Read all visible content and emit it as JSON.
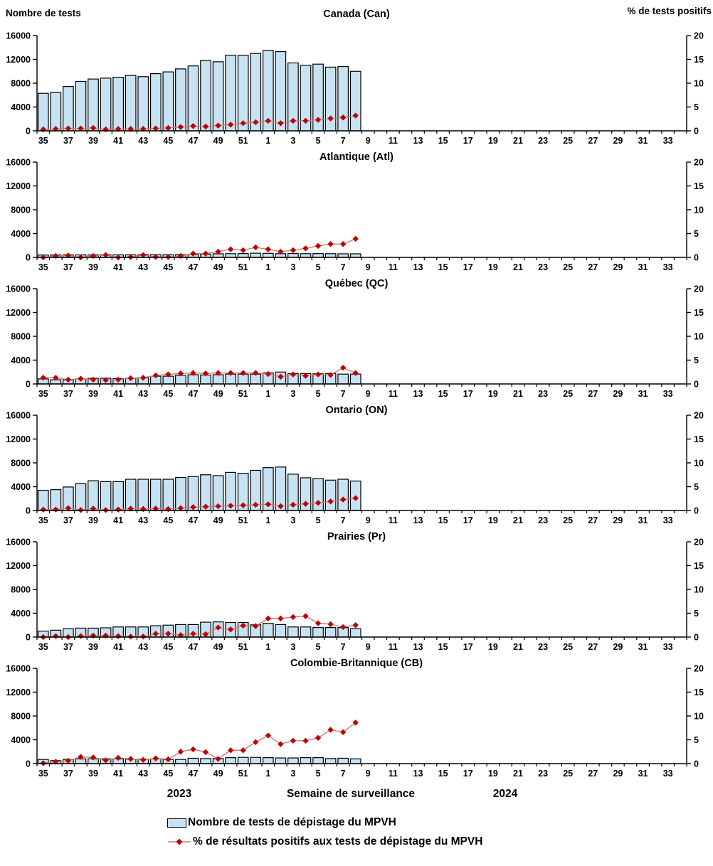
{
  "header": {
    "left_axis_title": "Nombre de tests",
    "right_axis_title": "% de tests positifs"
  },
  "footer": {
    "year_left": "2023",
    "x_axis_title": "Semaine de surveillance",
    "year_right": "2024"
  },
  "legend": {
    "bars_label": "Nombre de tests de dépistage du MPVH",
    "line_label": "% de résultats positifs aux tests de dépistage du MPVH"
  },
  "colors": {
    "bar_fill": "#C6E2F3",
    "bar_stroke": "#000000",
    "line": "#CC7A7A",
    "marker": "#BE0000",
    "axis": "#000000"
  },
  "chart_data": {
    "type": "bar+line",
    "x_axis_all_weeks": [
      35,
      36,
      37,
      38,
      39,
      40,
      41,
      42,
      43,
      44,
      45,
      46,
      47,
      48,
      49,
      50,
      51,
      52,
      1,
      2,
      3,
      4,
      5,
      6,
      7,
      8,
      9,
      10,
      11,
      12,
      13,
      14,
      15,
      16,
      17,
      18,
      19,
      20,
      21,
      22,
      23,
      24,
      25,
      26,
      27,
      28,
      29,
      30,
      31,
      32,
      33,
      34
    ],
    "x_tick_labels_shown": [
      35,
      37,
      39,
      41,
      43,
      45,
      47,
      49,
      51,
      1,
      3,
      5,
      7,
      9,
      11,
      13,
      15,
      17,
      19,
      21,
      23,
      25,
      27,
      29,
      31,
      33
    ],
    "weeks_with_data": [
      35,
      36,
      37,
      38,
      39,
      40,
      41,
      42,
      43,
      44,
      45,
      46,
      47,
      48,
      49,
      50,
      51,
      52,
      1,
      2,
      3,
      4,
      5,
      6,
      7,
      8
    ],
    "y_left_label": "Nombre de tests",
    "y_left_ticks": [
      0,
      4000,
      8000,
      12000,
      16000
    ],
    "y_left_range": [
      0,
      16000
    ],
    "y_right_label": "% de tests positifs",
    "y_right_ticks": [
      0,
      5,
      10,
      15,
      20
    ],
    "y_right_range": [
      0,
      20
    ],
    "panels": [
      {
        "region": "Canada (Can)",
        "tests": [
          6300,
          6450,
          7450,
          8300,
          8700,
          8850,
          9000,
          9300,
          9100,
          9600,
          9900,
          10400,
          10900,
          11800,
          11600,
          12700,
          12700,
          13000,
          13500,
          13300,
          11400,
          11000,
          11200,
          10700,
          10800,
          10000
        ],
        "pct_positive": [
          0.3,
          0.4,
          0.5,
          0.5,
          0.6,
          0.3,
          0.4,
          0.4,
          0.4,
          0.5,
          0.6,
          0.8,
          1.0,
          0.9,
          1.1,
          1.3,
          1.6,
          1.8,
          2.1,
          1.6,
          2.1,
          2.1,
          2.3,
          2.6,
          2.8,
          3.2
        ]
      },
      {
        "region": "Atlantique (Atl)",
        "tests": [
          400,
          410,
          420,
          420,
          420,
          430,
          430,
          430,
          440,
          450,
          450,
          460,
          500,
          550,
          600,
          620,
          640,
          700,
          680,
          620,
          650,
          620,
          640,
          620,
          600,
          600
        ],
        "pct_positive": [
          0.0,
          0.3,
          0.4,
          0.0,
          0.3,
          0.5,
          0.0,
          0.1,
          0.5,
          0.1,
          0.1,
          0.3,
          0.8,
          0.8,
          1.2,
          1.7,
          1.5,
          2.1,
          1.7,
          1.2,
          1.5,
          1.9,
          2.4,
          2.8,
          2.8,
          3.9
        ]
      },
      {
        "region": "Québec (QC)",
        "tests": [
          850,
          700,
          700,
          850,
          950,
          950,
          900,
          950,
          1050,
          1300,
          1300,
          1450,
          1550,
          1500,
          1550,
          1650,
          1650,
          1650,
          1850,
          2000,
          1750,
          1750,
          1700,
          1750,
          1650,
          1650
        ],
        "pct_positive": [
          1.3,
          1.3,
          0.9,
          1.1,
          0.9,
          0.8,
          0.9,
          1.2,
          1.3,
          1.8,
          2.0,
          2.2,
          2.3,
          2.2,
          2.3,
          2.3,
          2.3,
          2.3,
          2.1,
          1.5,
          2.0,
          1.7,
          2.0,
          1.9,
          3.4,
          2.3
        ]
      },
      {
        "region": "Ontario (ON)",
        "tests": [
          3400,
          3500,
          3950,
          4500,
          5000,
          4850,
          4850,
          5250,
          5250,
          5250,
          5250,
          5550,
          5700,
          6000,
          5850,
          6400,
          6250,
          6750,
          7200,
          7300,
          6100,
          5500,
          5350,
          5100,
          5250,
          4950
        ],
        "pct_positive": [
          0.2,
          0.2,
          0.5,
          0.1,
          0.4,
          0.1,
          0.2,
          0.4,
          0.3,
          0.4,
          0.3,
          0.5,
          0.7,
          0.8,
          0.9,
          1.0,
          1.1,
          1.2,
          1.3,
          0.9,
          1.2,
          1.4,
          1.6,
          1.9,
          2.3,
          2.6
        ]
      },
      {
        "region": "Prairies (Pr)",
        "tests": [
          1000,
          1150,
          1400,
          1500,
          1500,
          1550,
          1700,
          1700,
          1700,
          1900,
          2000,
          2100,
          2100,
          2500,
          2550,
          2450,
          2450,
          2050,
          2300,
          2100,
          1700,
          1700,
          1600,
          1600,
          1600,
          1400
        ],
        "pct_positive": [
          0.0,
          0.2,
          0.0,
          0.2,
          0.3,
          0.3,
          0.2,
          0.1,
          0.1,
          0.7,
          0.7,
          0.4,
          0.7,
          0.6,
          2.0,
          1.6,
          2.4,
          2.3,
          3.9,
          3.9,
          4.2,
          4.4,
          2.9,
          2.7,
          2.1,
          2.5
        ]
      },
      {
        "region": "Colombie-Britannique (CB)",
        "tests": [
          700,
          500,
          700,
          800,
          800,
          800,
          800,
          750,
          750,
          800,
          700,
          700,
          900,
          850,
          850,
          1000,
          1050,
          1050,
          1000,
          950,
          950,
          1000,
          1000,
          850,
          900,
          800
        ],
        "pct_positive": [
          0.1,
          0.4,
          0.6,
          1.4,
          1.3,
          0.7,
          1.2,
          1.0,
          0.8,
          1.1,
          0.9,
          2.5,
          3.0,
          2.4,
          1.0,
          2.8,
          2.8,
          4.5,
          5.9,
          4.1,
          4.8,
          4.8,
          5.4,
          7.1,
          6.6,
          8.6
        ]
      }
    ]
  }
}
